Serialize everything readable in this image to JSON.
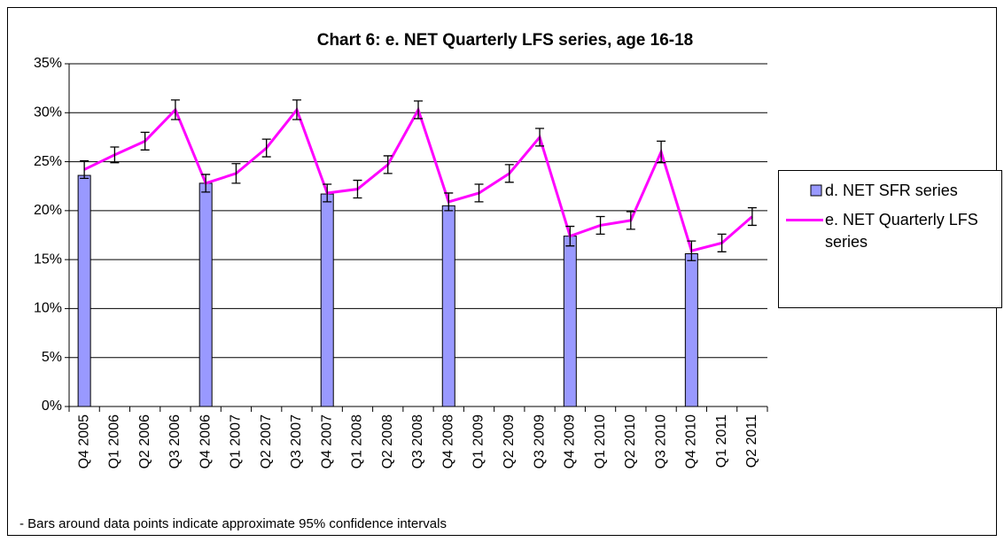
{
  "chart_data": {
    "type": "bar",
    "title": "Chart 6: e. NET Quarterly LFS series, age 16-18",
    "note": "- Bars around data points indicate approximate 95% confidence intervals",
    "categories": [
      "Q4 2005",
      "Q1 2006",
      "Q2 2006",
      "Q3 2006",
      "Q4 2006",
      "Q1 2007",
      "Q2 2007",
      "Q3 2007",
      "Q4 2007",
      "Q1 2008",
      "Q2 2008",
      "Q3 2008",
      "Q4 2008",
      "Q1 2009",
      "Q2 2009",
      "Q3 2009",
      "Q4 2009",
      "Q1 2010",
      "Q2 2010",
      "Q3 2010",
      "Q4 2010",
      "Q1 2011",
      "Q2 2011"
    ],
    "series": [
      {
        "name": "d. NET SFR series",
        "type": "bar",
        "color": "#9999ff",
        "values": [
          23.6,
          null,
          null,
          null,
          22.8,
          null,
          null,
          null,
          21.7,
          null,
          null,
          null,
          20.5,
          null,
          null,
          null,
          17.4,
          null,
          null,
          null,
          15.6,
          null,
          null
        ]
      },
      {
        "name": "e. NET Quarterly LFS series",
        "type": "line",
        "color": "#ff00ff",
        "values": [
          24.2,
          25.7,
          27.1,
          30.3,
          22.8,
          23.8,
          26.4,
          30.3,
          21.8,
          22.2,
          24.7,
          30.3,
          20.9,
          21.8,
          23.8,
          27.5,
          17.4,
          18.5,
          19.0,
          26.0,
          15.9,
          16.7,
          19.4
        ],
        "errors": [
          0.9,
          0.8,
          0.9,
          1.0,
          0.9,
          1.0,
          0.9,
          1.0,
          0.9,
          0.9,
          0.9,
          0.9,
          0.9,
          0.9,
          0.9,
          0.9,
          1.0,
          0.9,
          0.9,
          1.1,
          1.0,
          0.9,
          0.9
        ]
      }
    ],
    "ylim": [
      0,
      35
    ],
    "yticks": [
      {
        "value": 0,
        "label": "0%"
      },
      {
        "value": 5,
        "label": "5%"
      },
      {
        "value": 10,
        "label": "10%"
      },
      {
        "value": 15,
        "label": "15%"
      },
      {
        "value": 20,
        "label": "20%"
      },
      {
        "value": 25,
        "label": "25%"
      },
      {
        "value": 30,
        "label": "30%"
      },
      {
        "value": 35,
        "label": "35%"
      }
    ],
    "grid": true,
    "legend": "right"
  }
}
